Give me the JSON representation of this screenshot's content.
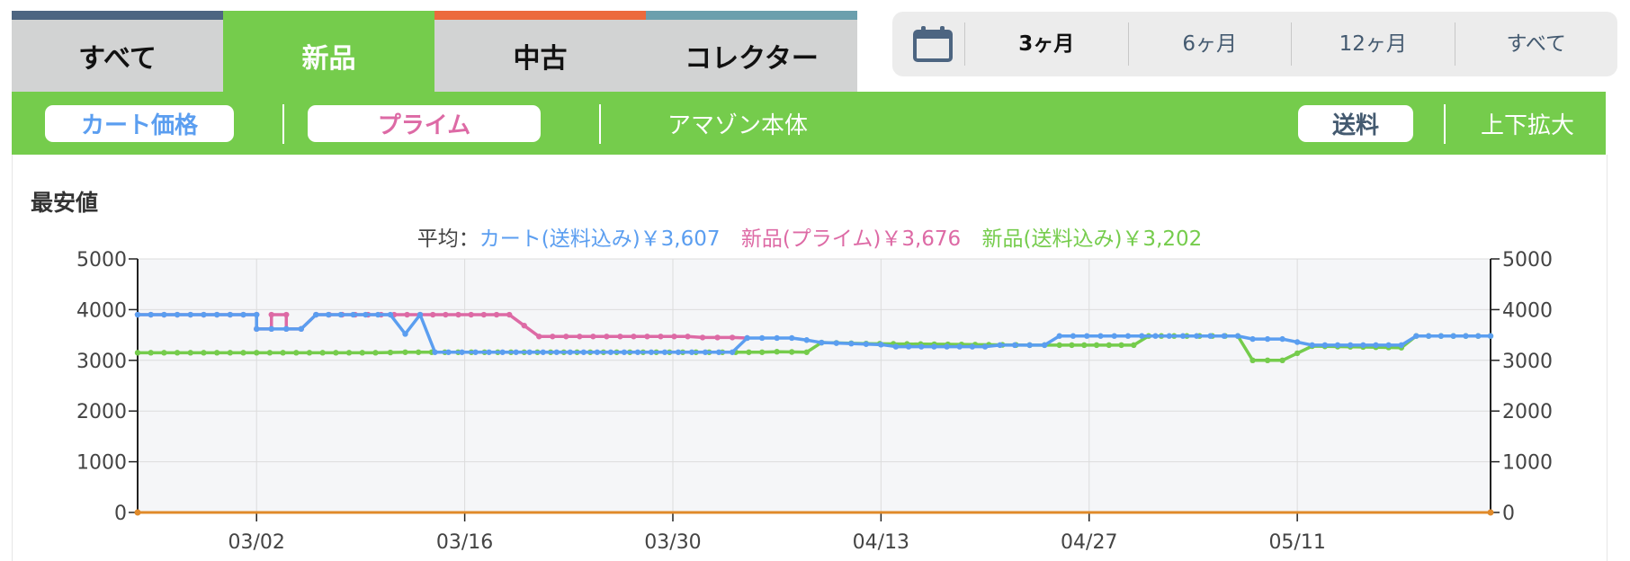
{
  "condition_tabs": [
    {
      "label": "すべて",
      "bar_color": "#4d6581",
      "active": false
    },
    {
      "label": "新品",
      "bar_color": "#75cc4c",
      "active": true
    },
    {
      "label": "中古",
      "bar_color": "#ec6a3c",
      "active": false
    },
    {
      "label": "コレクター",
      "bar_color": "#6b9fad",
      "active": false
    }
  ],
  "range": {
    "icon": "calendar-icon",
    "options": [
      "3ヶ月",
      "6ヶ月",
      "12ヶ月",
      "すべて"
    ],
    "selected": "3ヶ月"
  },
  "toggles": {
    "cart": "カート価格",
    "prime": "プライム",
    "amazon": "アマゾン本体",
    "shipping": "送料",
    "zoom": "上下拡大"
  },
  "section_title": "最安値",
  "averages": {
    "prefix": "平均：",
    "cart": "カート(送料込み)￥3,607",
    "prime": "新品(プライム)￥3,676",
    "new": "新品(送料込み)￥3,202"
  },
  "colors": {
    "green": "#75cc4c",
    "cart": "#5b9ef0",
    "prime": "#dd6aa5",
    "new": "#75cc4c",
    "amazon": "#e08a2a"
  },
  "chart_data": {
    "type": "line",
    "x_unit": "date",
    "xticks": [
      "03/02",
      "03/16",
      "03/30",
      "04/13",
      "04/27",
      "05/11"
    ],
    "xlim": [
      "2024-02-23",
      "2024-05-24"
    ],
    "ylim": [
      0,
      5000
    ],
    "yticks": [
      0,
      1000,
      2000,
      3000,
      4000,
      5000
    ],
    "grid": true,
    "series": [
      {
        "key": "new",
        "points": [
          [
            "2024-02-23",
            3150
          ],
          [
            "2024-03-10",
            3150
          ],
          [
            "2024-03-12",
            3160
          ],
          [
            "2024-04-05",
            3160
          ],
          [
            "2024-04-06",
            3170
          ],
          [
            "2024-04-08",
            3160
          ],
          [
            "2024-04-09",
            3350
          ],
          [
            "2024-04-12",
            3330
          ],
          [
            "2024-04-23",
            3300
          ],
          [
            "2024-04-25",
            3300
          ],
          [
            "2024-04-30",
            3300
          ],
          [
            "2024-05-01",
            3480
          ],
          [
            "2024-05-07",
            3480
          ],
          [
            "2024-05-08",
            3000
          ],
          [
            "2024-05-10",
            3000
          ],
          [
            "2024-05-12",
            3280
          ],
          [
            "2024-05-18",
            3250
          ],
          [
            "2024-05-19",
            3480
          ],
          [
            "2024-05-24",
            3480
          ]
        ]
      },
      {
        "key": "prime",
        "points": [
          [
            "2024-02-23",
            3900
          ],
          [
            "2024-03-02",
            3900
          ],
          [
            "2024-03-02",
            3620
          ],
          [
            "2024-03-03",
            3620
          ],
          [
            "2024-03-03",
            3900
          ],
          [
            "2024-03-04",
            3900
          ],
          [
            "2024-03-04",
            3620
          ],
          [
            "2024-03-05",
            3620
          ],
          [
            "2024-03-06",
            3900
          ],
          [
            "2024-03-13",
            3900
          ],
          [
            "2024-03-13",
            3900
          ],
          [
            "2024-03-19",
            3900
          ],
          [
            "2024-03-21",
            3470
          ],
          [
            "2024-03-31",
            3470
          ],
          [
            "2024-04-01",
            3450
          ],
          [
            "2024-04-03",
            3450
          ],
          [
            "2024-04-04",
            3440
          ]
        ]
      },
      {
        "key": "cart",
        "points": [
          [
            "2024-02-23",
            3900
          ],
          [
            "2024-03-02",
            3900
          ],
          [
            "2024-03-02",
            3620
          ],
          [
            "2024-03-05",
            3620
          ],
          [
            "2024-03-06",
            3900
          ],
          [
            "2024-03-11",
            3900
          ],
          [
            "2024-03-12",
            3520
          ],
          [
            "2024-03-13",
            3900
          ],
          [
            "2024-03-14",
            3160
          ],
          [
            "2024-04-03",
            3160
          ],
          [
            "2024-04-04",
            3440
          ],
          [
            "2024-04-07",
            3440
          ],
          [
            "2024-04-08",
            3400
          ],
          [
            "2024-04-09",
            3350
          ],
          [
            "2024-04-13",
            3310
          ],
          [
            "2024-04-14",
            3270
          ],
          [
            "2024-04-20",
            3270
          ],
          [
            "2024-04-21",
            3300
          ],
          [
            "2024-04-24",
            3300
          ],
          [
            "2024-04-25",
            3480
          ],
          [
            "2024-05-07",
            3480
          ],
          [
            "2024-05-08",
            3420
          ],
          [
            "2024-05-10",
            3420
          ],
          [
            "2024-05-12",
            3300
          ],
          [
            "2024-05-18",
            3300
          ],
          [
            "2024-05-19",
            3480
          ],
          [
            "2024-05-24",
            3480
          ]
        ]
      },
      {
        "key": "amazon",
        "points": [
          [
            "2024-02-23",
            0
          ],
          [
            "2024-05-24",
            0
          ]
        ]
      }
    ]
  }
}
